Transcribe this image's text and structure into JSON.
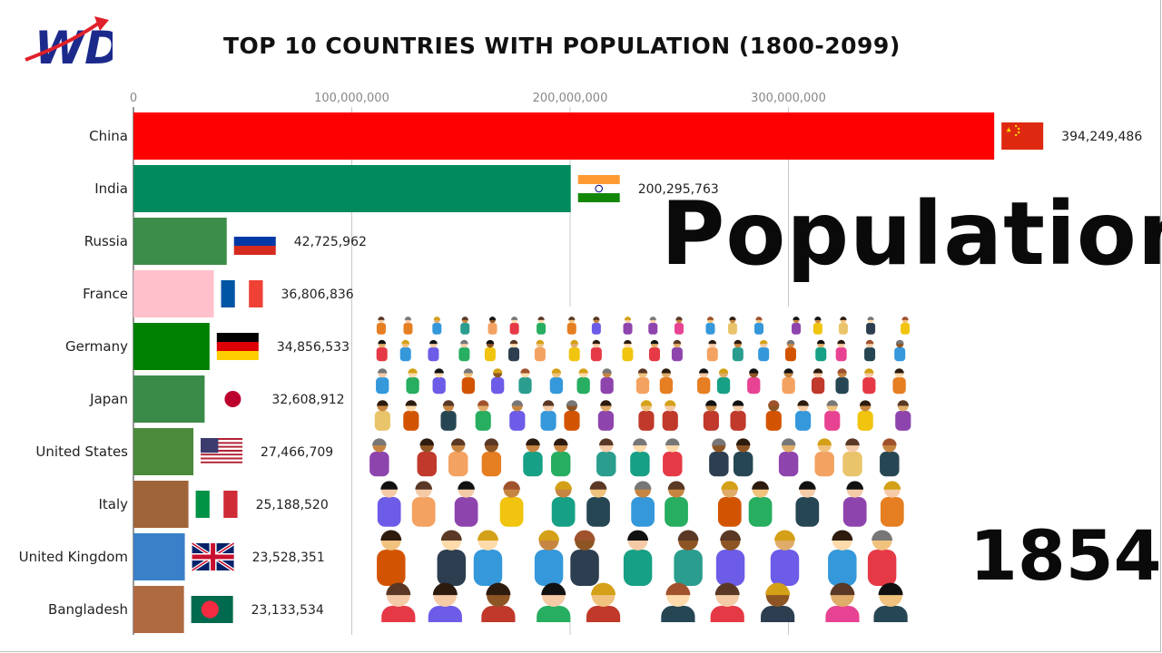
{
  "header": {
    "title": "TOP 10 COUNTRIES WITH POPULATION (1800-2099)",
    "logo_text": "WD"
  },
  "overlay": {
    "word": "Population",
    "year": "1854"
  },
  "chart_data": {
    "type": "bar",
    "orientation": "horizontal",
    "title": "TOP 10 COUNTRIES WITH POPULATION (1800-2099)",
    "xlim": [
      0,
      400000000
    ],
    "x_ticks": [
      0,
      100000000,
      200000000,
      300000000
    ],
    "x_tick_labels": [
      "0",
      "100,000,000",
      "200,000,000",
      "300,000,000"
    ],
    "grid": true,
    "categories": [
      "China",
      "India",
      "Russia",
      "France",
      "Germany",
      "Japan",
      "United States",
      "Italy",
      "United Kingdom",
      "Bangladesh"
    ],
    "values": [
      394249486,
      200295763,
      42725962,
      36806836,
      34856533,
      32608912,
      27466709,
      25188520,
      23528351,
      23133534
    ],
    "value_labels": [
      "394,249,486",
      "200,295,763",
      "42,725,962",
      "36,806,836",
      "34,856,533",
      "32,608,912",
      "27,466,709",
      "25,188,520",
      "23,528,351",
      "23,133,534"
    ],
    "colors": [
      "#ff0000",
      "#008a5e",
      "#3c8c4a",
      "#ffc0cb",
      "#008000",
      "#3a8a48",
      "#4a8a3a",
      "#a0643a",
      "#3a80c8",
      "#b06a40"
    ],
    "flags": [
      "china-flag",
      "india-flag",
      "russia-flag",
      "france-flag",
      "germany-flag",
      "japan-flag",
      "usa-flag",
      "italy-flag",
      "uk-flag",
      "bangladesh-flag"
    ]
  }
}
